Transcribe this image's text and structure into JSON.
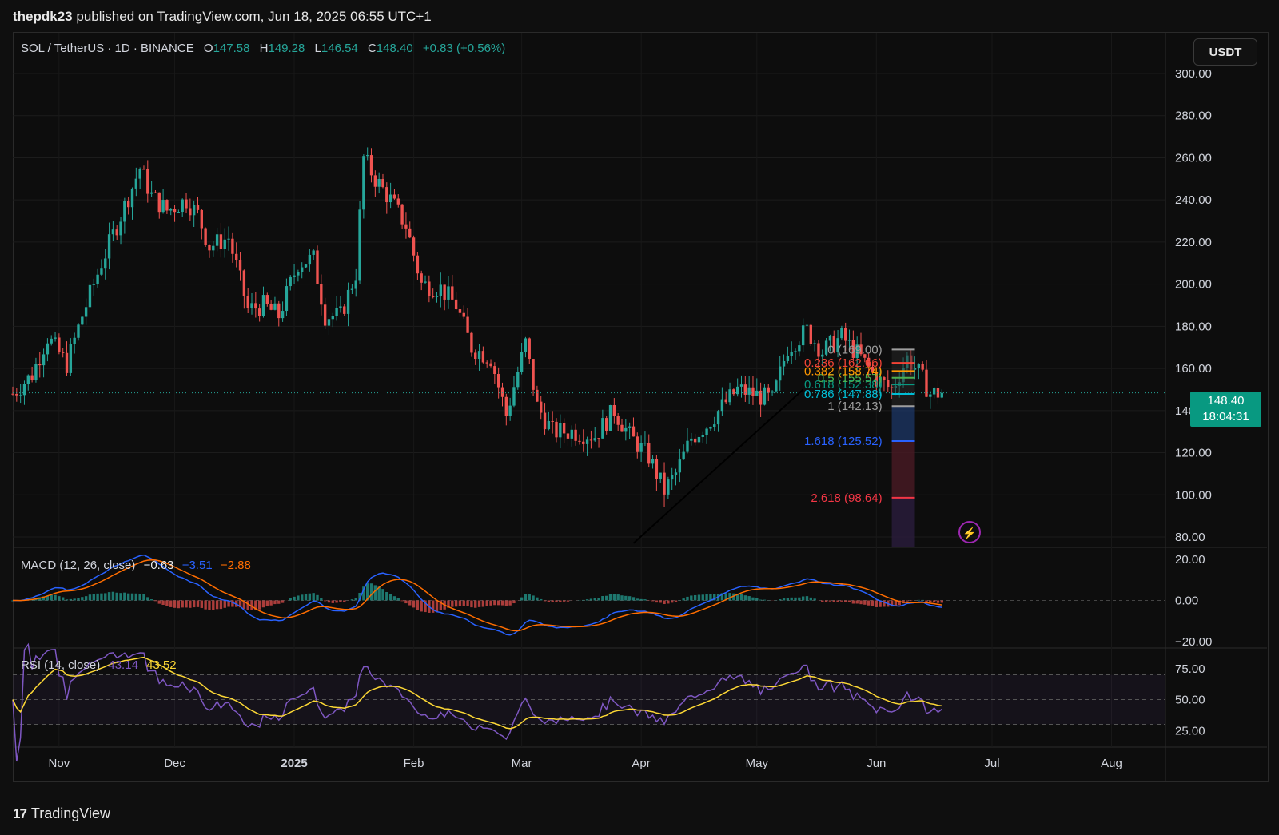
{
  "header": {
    "author": "thepdk23",
    "published_text": "published on TradingView.com, Jun 18, 2025 06:55 UTC+1"
  },
  "symbol": {
    "title": "SOL / TetherUS · 1D · BINANCE",
    "open_label": "O",
    "open": "147.58",
    "high_label": "H",
    "high": "149.28",
    "low_label": "L",
    "low": "146.54",
    "close_label": "C",
    "close": "148.40",
    "change": "+0.83 (+0.56%)"
  },
  "currency_button": "USDT",
  "price_tag": {
    "price": "148.40",
    "countdown": "18:04:31"
  },
  "colors": {
    "up": "#26a69a",
    "down": "#ef5350",
    "background": "#0d0d0d",
    "macd_line": "#2962ff",
    "signal_line": "#ff6d00",
    "rsi_line": "#7e57c2",
    "rsi_ma": "#fdd835"
  },
  "chart_data": [
    {
      "type": "candlestick",
      "title": "SOL / TetherUS · 1D · BINANCE",
      "ylim": [
        75,
        305
      ],
      "y_ticks": [
        "300.00",
        "280.00",
        "260.00",
        "240.00",
        "220.00",
        "200.00",
        "180.00",
        "160.00",
        "140.00",
        "120.00",
        "100.00",
        "80.00"
      ],
      "y_tick_values": [
        300,
        280,
        260,
        240,
        220,
        200,
        180,
        160,
        140,
        120,
        100,
        80
      ],
      "x_tick_labels": [
        "Nov",
        "Dec",
        "2025",
        "Feb",
        "Mar",
        "Apr",
        "May",
        "Jun",
        "Jul",
        "Aug"
      ],
      "price_path": [
        [
          "2024-10-20",
          148
        ],
        [
          "2024-10-25",
          157
        ],
        [
          "2024-10-29",
          175
        ],
        [
          "2024-11-03",
          162
        ],
        [
          "2024-11-07",
          185
        ],
        [
          "2024-11-12",
          210
        ],
        [
          "2024-11-16",
          228
        ],
        [
          "2024-11-22",
          255
        ],
        [
          "2024-11-25",
          242
        ],
        [
          "2024-11-29",
          235
        ],
        [
          "2024-12-04",
          240
        ],
        [
          "2024-12-07",
          233
        ],
        [
          "2024-12-10",
          218
        ],
        [
          "2024-12-15",
          222
        ],
        [
          "2024-12-20",
          188
        ],
        [
          "2024-12-24",
          190
        ],
        [
          "2024-12-28",
          185
        ],
        [
          "2025-01-02",
          210
        ],
        [
          "2025-01-06",
          212
        ],
        [
          "2025-01-09",
          185
        ],
        [
          "2025-01-13",
          185
        ],
        [
          "2025-01-17",
          205
        ],
        [
          "2025-01-19",
          260
        ],
        [
          "2025-01-22",
          250
        ],
        [
          "2025-01-26",
          240
        ],
        [
          "2025-01-30",
          228
        ],
        [
          "2025-02-03",
          200
        ],
        [
          "2025-02-08",
          198
        ],
        [
          "2025-02-12",
          190
        ],
        [
          "2025-02-16",
          170
        ],
        [
          "2025-02-21",
          165
        ],
        [
          "2025-02-25",
          138
        ],
        [
          "2025-03-02",
          172
        ],
        [
          "2025-03-05",
          142
        ],
        [
          "2025-03-09",
          130
        ],
        [
          "2025-03-14",
          130
        ],
        [
          "2025-03-20",
          128
        ],
        [
          "2025-03-25",
          140
        ],
        [
          "2025-03-29",
          128
        ],
        [
          "2025-04-03",
          118
        ],
        [
          "2025-04-07",
          102
        ],
        [
          "2025-04-10",
          110
        ],
        [
          "2025-04-14",
          127
        ],
        [
          "2025-04-18",
          133
        ],
        [
          "2025-04-22",
          142
        ],
        [
          "2025-04-26",
          150
        ],
        [
          "2025-04-30",
          148
        ],
        [
          "2025-05-05",
          145
        ],
        [
          "2025-05-09",
          170
        ],
        [
          "2025-05-14",
          178
        ],
        [
          "2025-05-18",
          168
        ],
        [
          "2025-05-23",
          175
        ],
        [
          "2025-05-28",
          165
        ],
        [
          "2025-06-01",
          155
        ],
        [
          "2025-06-05",
          150
        ],
        [
          "2025-06-09",
          165
        ],
        [
          "2025-06-12",
          158
        ],
        [
          "2025-06-15",
          148
        ],
        [
          "2025-06-18",
          148.4
        ]
      ],
      "last_price": 148.4,
      "fib_levels": [
        {
          "ratio": "1",
          "price": 142.13,
          "label": "1 (142.13)",
          "color": "#9e9e9e"
        },
        {
          "ratio": "0.786",
          "price": 147.88,
          "label": "0.786 (147.88)",
          "color": "#00bcd4"
        },
        {
          "ratio": "0.618",
          "price": 152.38,
          "label": "0.618 (152.38)",
          "color": "#089981"
        },
        {
          "ratio": "0.5",
          "price": 155.57,
          "label": "0.5 (155.57)",
          "color": "#4caf50"
        },
        {
          "ratio": "0.382",
          "price": 158.74,
          "label": "0.382 (158.74)",
          "color": "#ff9800"
        },
        {
          "ratio": "0.236",
          "price": 162.66,
          "label": "0.236 (162.66)",
          "color": "#f44336"
        },
        {
          "ratio": "0",
          "price": 169.0,
          "label": "0 (169.00)",
          "color": "#9e9e9e"
        },
        {
          "ratio": "1.618",
          "price": 125.52,
          "label": "1.618 (125.52)",
          "color": "#2962ff"
        },
        {
          "ratio": "2.618",
          "price": 98.64,
          "label": "2.618 (98.64)",
          "color": "#f23645"
        }
      ],
      "trendline": [
        [
          "2025-03-30",
          77
        ],
        [
          "2025-05-13",
          150
        ]
      ]
    },
    {
      "type": "line",
      "title": "MACD (12, 26, close)",
      "values_shown": [
        "−0.63",
        "−3.51",
        "−2.88"
      ],
      "ylim": [
        -22,
        22
      ],
      "y_ticks": [
        "20.00",
        "0.00",
        "−20.00"
      ],
      "y_tick_values": [
        20,
        0,
        -20
      ]
    },
    {
      "type": "line",
      "title": "RSI (14, close)",
      "values_shown": [
        "43.14",
        "43.52"
      ],
      "ylim": [
        20,
        80
      ],
      "y_ticks": [
        "75.00",
        "50.00",
        "25.00"
      ],
      "y_tick_values": [
        75,
        50,
        25
      ],
      "bands": [
        30,
        50,
        70
      ]
    }
  ],
  "footer": {
    "brand": "TradingView"
  }
}
